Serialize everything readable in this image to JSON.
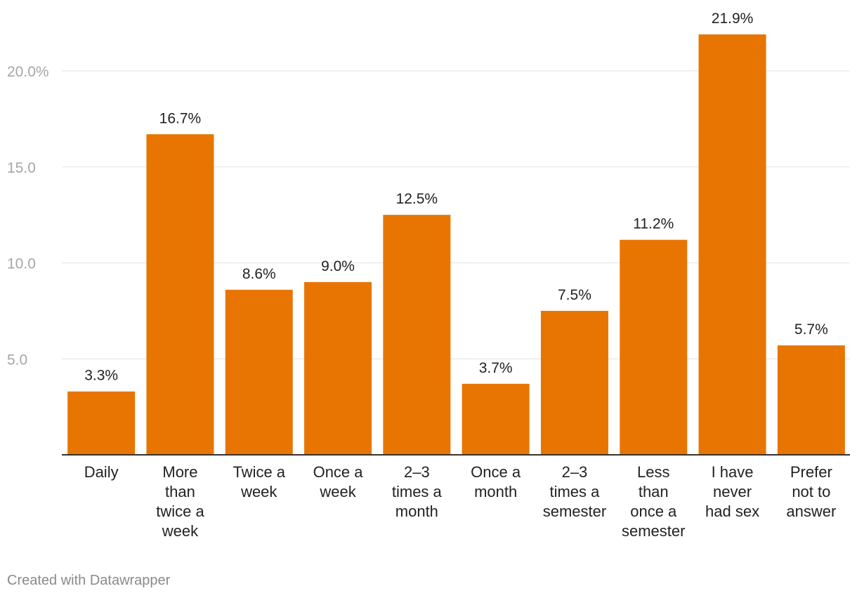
{
  "chart_data": {
    "type": "bar",
    "title": "",
    "xlabel": "",
    "ylabel": "",
    "ylim": [
      0,
      22
    ],
    "yticks": [
      5,
      10,
      15,
      20
    ],
    "ytick_labels": [
      "5.0",
      "10.0",
      "15.0",
      "20.0%"
    ],
    "bar_color": "#e87502",
    "categories": [
      "Daily",
      "More than twice a week",
      "Twice a week",
      "Once a week",
      "2–3 times a month",
      "Once a month",
      "2–3 times a semester",
      "Less than once a semester",
      "I have never had sex",
      "Prefer not to answer"
    ],
    "category_lines": [
      [
        "Daily"
      ],
      [
        "More",
        "than",
        "twice a",
        "week"
      ],
      [
        "Twice a",
        "week"
      ],
      [
        "Once a",
        "week"
      ],
      [
        "2–3",
        "times a",
        "month"
      ],
      [
        "Once a",
        "month"
      ],
      [
        "2–3",
        "times a",
        "semester"
      ],
      [
        "Less",
        "than",
        "once a",
        "semester"
      ],
      [
        "I have",
        "never",
        "had sex"
      ],
      [
        "Prefer",
        "not to",
        "answer"
      ]
    ],
    "values": [
      3.3,
      16.7,
      8.6,
      9.0,
      12.5,
      3.7,
      7.5,
      11.2,
      21.9,
      5.7
    ],
    "value_labels": [
      "3.3%",
      "16.7%",
      "8.6%",
      "9.0%",
      "12.5%",
      "3.7%",
      "7.5%",
      "11.2%",
      "21.9%",
      "5.7%"
    ]
  },
  "footer": {
    "credit": "Created with Datawrapper"
  }
}
